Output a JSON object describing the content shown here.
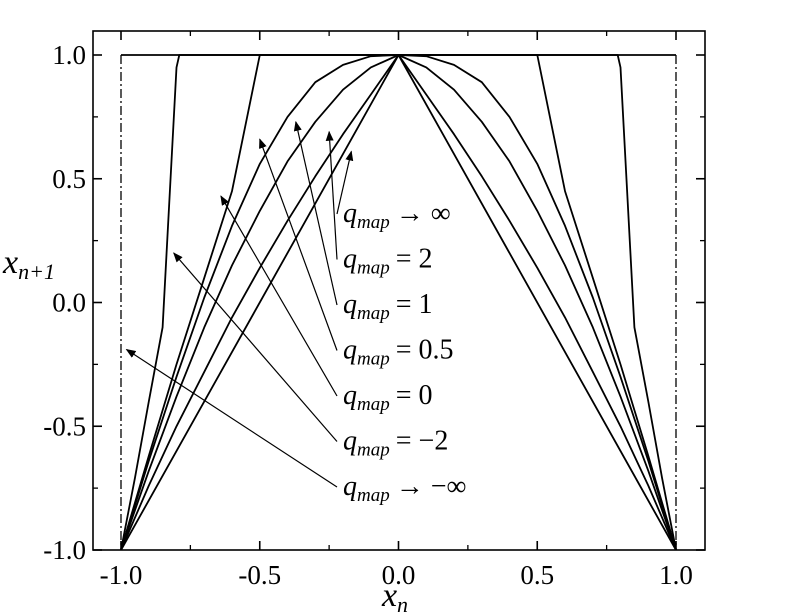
{
  "chart_data": {
    "type": "line",
    "xlabel": "x",
    "xlabel_sub": "n",
    "ylabel": "x",
    "ylabel_sub": "n+1",
    "xlim": [
      -1.0,
      1.0
    ],
    "ylim": [
      -1.0,
      1.0
    ],
    "x_ticks": [
      -1.0,
      -0.5,
      0.0,
      0.5,
      1.0
    ],
    "x_tick_labels": [
      "-1.0",
      "-0.5",
      "0.0",
      "0.5",
      "1.0"
    ],
    "y_ticks": [
      -1.0,
      -0.5,
      0.0,
      0.5,
      1.0
    ],
    "y_tick_labels": [
      "-1.0",
      "-0.5",
      "0.0",
      "0.5",
      "1.0"
    ],
    "grid": false,
    "legend": "none",
    "series": [
      {
        "q": "inf",
        "kind": "boundary",
        "x": [
          -1.0,
          -1.0,
          1.0,
          1.0
        ],
        "y": [
          -1.0,
          1.0,
          1.0,
          -1.0
        ]
      },
      {
        "q": 2,
        "x": [
          -1.0,
          -0.95,
          -0.9,
          -0.85,
          -0.8,
          -0.79,
          -0.7,
          -0.6,
          -0.5,
          -0.4,
          -0.3,
          -0.2,
          -0.1,
          0.0,
          0.1,
          0.2,
          0.3,
          0.4,
          0.5,
          0.6,
          0.7,
          0.79,
          0.8,
          0.85,
          0.9,
          0.95,
          1.0
        ],
        "y": [
          -1.0,
          -0.71,
          -0.4,
          -0.1,
          0.95,
          1.0,
          1.0,
          1.0,
          1.0,
          1.0,
          1.0,
          1.0,
          1.0,
          1.0,
          1.0,
          1.0,
          1.0,
          1.0,
          1.0,
          1.0,
          1.0,
          1.0,
          0.95,
          -0.1,
          -0.4,
          -0.71,
          -1.0
        ]
      },
      {
        "q": 1,
        "x": [
          -1.0,
          -0.9,
          -0.8,
          -0.7,
          -0.6,
          -0.5,
          -0.4,
          -0.3,
          -0.2,
          -0.1,
          0.0,
          0.1,
          0.2,
          0.3,
          0.4,
          0.5,
          0.6,
          0.7,
          0.8,
          0.9,
          1.0
        ],
        "y": [
          -1.0,
          -0.62,
          -0.25,
          0.1,
          0.45,
          1.0,
          1.0,
          1.0,
          1.0,
          1.0,
          1.0,
          1.0,
          1.0,
          1.0,
          1.0,
          1.0,
          0.45,
          0.1,
          -0.25,
          -0.62,
          -1.0
        ]
      },
      {
        "q": 0.5,
        "x": [
          -1.0,
          -0.9,
          -0.8,
          -0.7,
          -0.6,
          -0.5,
          -0.4,
          -0.3,
          -0.2,
          -0.1,
          0.0,
          0.1,
          0.2,
          0.3,
          0.4,
          0.5,
          0.6,
          0.7,
          0.8,
          0.9,
          1.0
        ],
        "y": [
          -1.0,
          -0.64,
          -0.3,
          0.02,
          0.31,
          0.56,
          0.75,
          0.89,
          0.96,
          0.995,
          1.0,
          0.995,
          0.96,
          0.89,
          0.75,
          0.56,
          0.31,
          0.02,
          -0.3,
          -0.64,
          -1.0
        ]
      },
      {
        "q": 0,
        "x": [
          -1.0,
          -0.9,
          -0.8,
          -0.7,
          -0.6,
          -0.5,
          -0.4,
          -0.3,
          -0.2,
          -0.1,
          0.0,
          0.1,
          0.2,
          0.3,
          0.4,
          0.5,
          0.6,
          0.7,
          0.8,
          0.9,
          1.0
        ],
        "y": [
          -1.0,
          -0.68,
          -0.38,
          -0.1,
          0.15,
          0.37,
          0.57,
          0.73,
          0.86,
          0.95,
          1.0,
          0.95,
          0.86,
          0.73,
          0.57,
          0.37,
          0.15,
          -0.1,
          -0.38,
          -0.68,
          -1.0
        ]
      },
      {
        "q": -2,
        "x": [
          -1.0,
          -0.9,
          -0.8,
          -0.7,
          -0.6,
          -0.5,
          -0.4,
          -0.3,
          -0.2,
          -0.1,
          0.0,
          0.1,
          0.2,
          0.3,
          0.4,
          0.5,
          0.6,
          0.7,
          0.8,
          0.9,
          1.0
        ],
        "y": [
          -1.0,
          -0.74,
          -0.5,
          -0.28,
          -0.06,
          0.14,
          0.33,
          0.51,
          0.68,
          0.84,
          1.0,
          0.84,
          0.68,
          0.51,
          0.33,
          0.14,
          -0.06,
          -0.28,
          -0.5,
          -0.74,
          -1.0
        ]
      },
      {
        "q": "-inf",
        "x": [
          -1.0,
          0.0,
          1.0
        ],
        "y": [
          -1.0,
          1.0,
          -1.0
        ]
      }
    ],
    "vertical_reference_lines": {
      "x": [
        -1.0,
        1.0
      ],
      "style": "dash-dot"
    },
    "annotations": [
      {
        "relation": "→",
        "value": "∞",
        "arrow_to": [
          -0.17,
          0.61
        ]
      },
      {
        "relation": "=",
        "value": "2",
        "arrow_to": [
          -0.25,
          0.69
        ]
      },
      {
        "relation": "=",
        "value": "1",
        "arrow_to": [
          -0.37,
          0.73
        ]
      },
      {
        "relation": "=",
        "value": "0.5",
        "arrow_to": [
          -0.5,
          0.66
        ]
      },
      {
        "relation": "=",
        "value": "0",
        "arrow_to": [
          -0.64,
          0.43
        ]
      },
      {
        "relation": "=",
        "value": "−2",
        "arrow_to": [
          -0.81,
          0.2
        ]
      },
      {
        "relation": "→",
        "value": "−∞",
        "arrow_to": [
          -0.98,
          -0.19
        ]
      }
    ],
    "annotation_symbol": "q",
    "annotation_subscript": "map"
  }
}
